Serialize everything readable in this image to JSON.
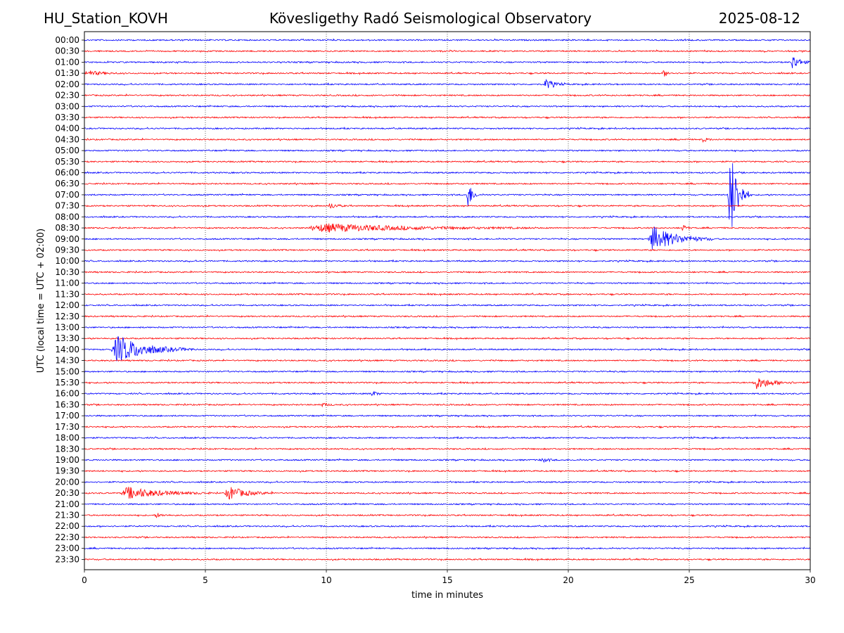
{
  "header": {
    "station": "HU_Station_KOVH",
    "title": "Kövesligethy Radó Seismological Observatory",
    "date": "2025-08-12"
  },
  "chart_data": {
    "type": "line",
    "title": "Kövesligethy Radó Seismological Observatory",
    "xlabel": "time in minutes",
    "ylabel": "UTC (local time = UTC + 02:00)",
    "xlim": [
      0,
      30
    ],
    "xticks": [
      0,
      5,
      10,
      15,
      20,
      25,
      30
    ],
    "grid": "vertical dotted at 5-minute ticks",
    "trace_colors": [
      "#0000ff",
      "#ff0000"
    ],
    "rows": [
      "00:00",
      "00:30",
      "01:00",
      "01:30",
      "02:00",
      "02:30",
      "03:00",
      "03:30",
      "04:00",
      "04:30",
      "05:00",
      "05:30",
      "06:00",
      "06:30",
      "07:00",
      "07:30",
      "08:00",
      "08:30",
      "09:00",
      "09:30",
      "10:00",
      "10:30",
      "11:00",
      "11:30",
      "12:00",
      "12:30",
      "13:00",
      "13:30",
      "14:00",
      "14:30",
      "15:00",
      "15:30",
      "16:00",
      "16:30",
      "17:00",
      "17:30",
      "18:00",
      "18:30",
      "19:00",
      "19:30",
      "20:00",
      "20:30",
      "21:00",
      "21:30",
      "22:00",
      "22:30",
      "23:00",
      "23:30"
    ],
    "events": [
      {
        "row": "01:00",
        "start_min": 29.2,
        "end_min": 30.0,
        "amplitude": 0.85
      },
      {
        "row": "01:30",
        "start_min": 0.0,
        "end_min": 1.5,
        "amplitude": 0.3
      },
      {
        "row": "01:30",
        "start_min": 23.9,
        "end_min": 24.4,
        "amplitude": 0.35
      },
      {
        "row": "02:00",
        "start_min": 19.0,
        "end_min": 19.9,
        "amplitude": 0.6
      },
      {
        "row": "04:30",
        "start_min": 25.5,
        "end_min": 26.0,
        "amplitude": 0.3
      },
      {
        "row": "07:00",
        "start_min": 15.8,
        "end_min": 16.3,
        "amplitude": 1.8
      },
      {
        "row": "07:00",
        "start_min": 26.6,
        "end_min": 27.5,
        "amplitude": 5.5
      },
      {
        "row": "07:30",
        "start_min": 10.1,
        "end_min": 10.8,
        "amplitude": 0.35
      },
      {
        "row": "08:30",
        "start_min": 9.2,
        "end_min": 18.8,
        "amplitude": 0.45
      },
      {
        "row": "08:30",
        "start_min": 24.7,
        "end_min": 25.1,
        "amplitude": 0.4
      },
      {
        "row": "09:00",
        "start_min": 23.3,
        "end_min": 26.0,
        "amplitude": 1.4
      },
      {
        "row": "14:00",
        "start_min": 1.1,
        "end_min": 4.5,
        "amplitude": 1.5
      },
      {
        "row": "15:30",
        "start_min": 27.6,
        "end_min": 29.5,
        "amplitude": 0.7
      },
      {
        "row": "16:00",
        "start_min": 11.8,
        "end_min": 12.4,
        "amplitude": 0.35
      },
      {
        "row": "16:30",
        "start_min": 9.8,
        "end_min": 10.4,
        "amplitude": 0.2
      },
      {
        "row": "19:00",
        "start_min": 18.8,
        "end_min": 19.5,
        "amplitude": 0.3
      },
      {
        "row": "20:30",
        "start_min": 1.5,
        "end_min": 5.2,
        "amplitude": 0.65
      },
      {
        "row": "20:30",
        "start_min": 5.8,
        "end_min": 7.8,
        "amplitude": 0.75
      },
      {
        "row": "21:30",
        "start_min": 2.9,
        "end_min": 3.6,
        "amplitude": 0.2
      }
    ]
  }
}
